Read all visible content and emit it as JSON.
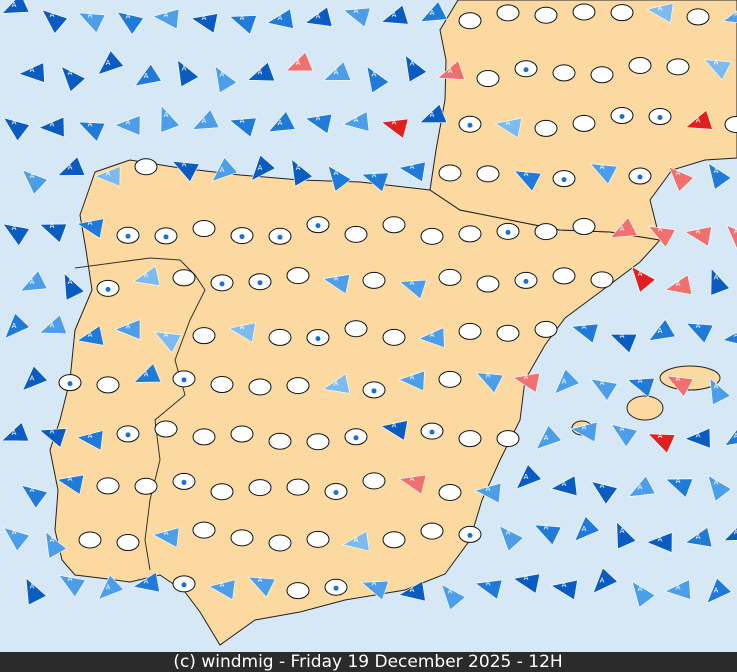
{
  "symbol_letter": "A",
  "footer": "(c) windmig - Friday 19 December 2025 - 12H"
}
